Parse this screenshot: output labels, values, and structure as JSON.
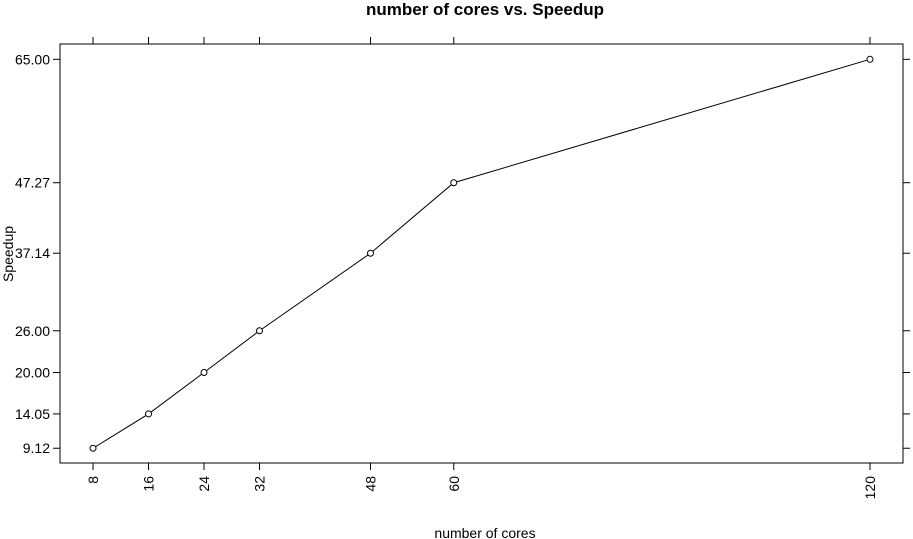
{
  "chart_data": {
    "type": "line",
    "title": "number of cores vs. Speedup",
    "xlabel": "number of cores",
    "ylabel": "Speedup",
    "x": [
      8,
      16,
      24,
      32,
      48,
      60,
      120
    ],
    "series": [
      {
        "values": [
          9.12,
          14.05,
          20.0,
          26.0,
          37.14,
          47.27,
          65.0
        ]
      }
    ],
    "x_tick_labels": [
      "8",
      "16",
      "24",
      "32",
      "48",
      "60",
      "120"
    ],
    "y_tick_labels": [
      "9.12",
      "14.05",
      "20.00",
      "26.00",
      "37.14",
      "47.27",
      "65.00"
    ],
    "y_ticks": [
      9.12,
      14.05,
      20.0,
      26.0,
      37.14,
      47.27,
      65.0
    ],
    "xlim": [
      3.24,
      124.76
    ],
    "ylim": [
      7.0,
      67.2
    ],
    "grid": false,
    "marker": "open-circle",
    "colors": {
      "line": "#000000",
      "axis": "#000000",
      "background": "#ffffff"
    }
  }
}
